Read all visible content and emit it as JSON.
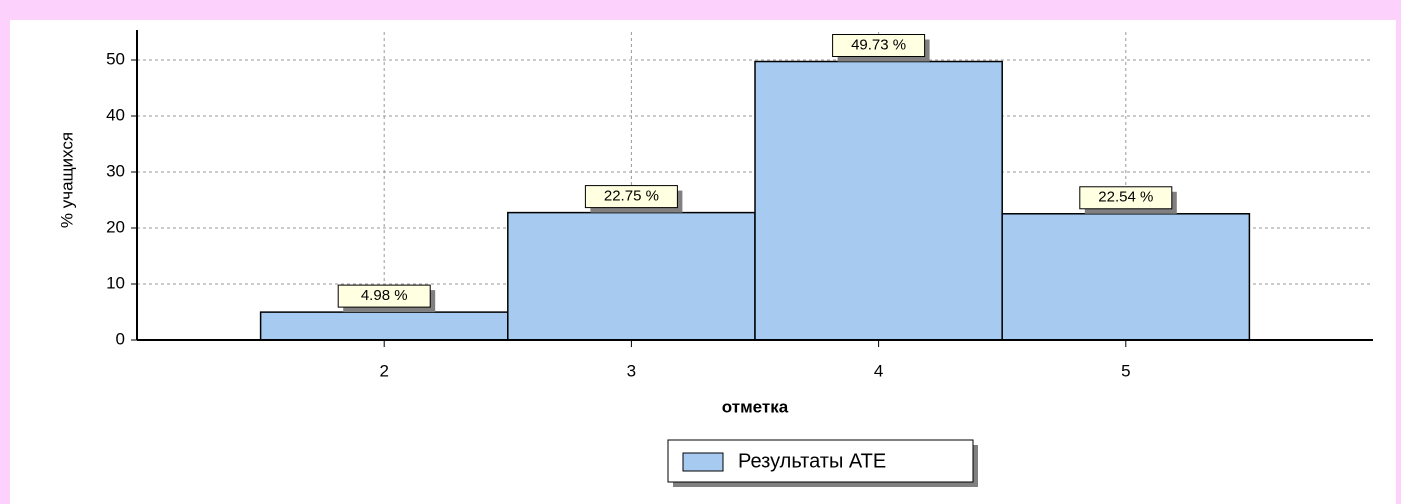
{
  "chart_data": {
    "type": "bar",
    "ylabel": "% учащихся",
    "xlabel": "отметка",
    "x": [
      2,
      3,
      4,
      5
    ],
    "xlim": [
      1,
      6
    ],
    "xticks": [
      2,
      3,
      4,
      5
    ],
    "series": [
      {
        "name": "Результаты АТЕ",
        "color": "#a6caf0",
        "values": [
          4.98,
          22.75,
          49.73,
          22.54
        ],
        "value_labels": [
          "4.98 %",
          "22.75 %",
          "49.73 %",
          "22.54 %"
        ]
      }
    ],
    "ylim": [
      0,
      55
    ],
    "yticks": [
      0,
      10,
      20,
      30,
      40,
      50
    ],
    "grid": true,
    "legend": "bottom"
  }
}
